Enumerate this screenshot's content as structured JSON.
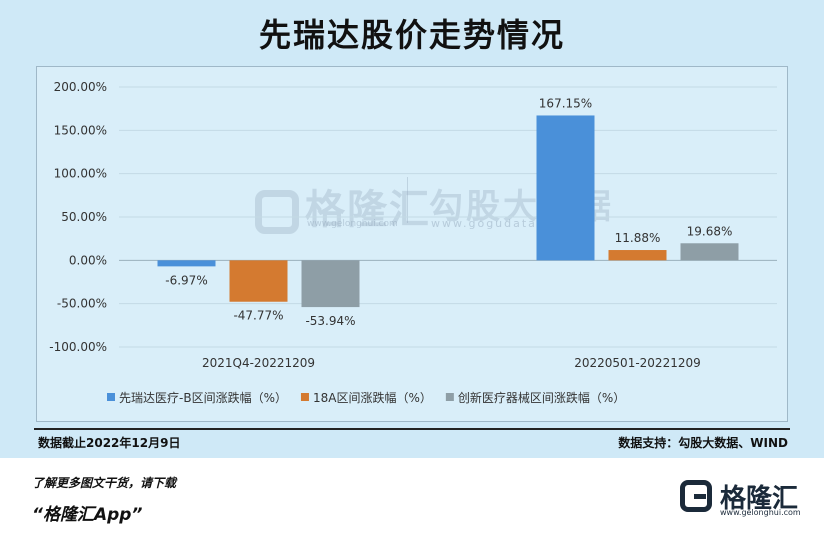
{
  "header": {
    "title": "先瑞达股价走势情况"
  },
  "watermark": {
    "left_brand": "格隆汇",
    "left_url": "www.gelonghui.com",
    "right_brand": "勾股大数据",
    "right_url": "www.gogudata.com"
  },
  "chart_data": {
    "type": "bar",
    "categories": [
      "2021Q4-20221209",
      "20220501-20221209"
    ],
    "series": [
      {
        "name": "先瑞达医疗-B区间涨跌幅（%）",
        "color": "#4a90d9",
        "values": [
          -6.97,
          167.15
        ],
        "labels": [
          "-6.97%",
          "167.15%"
        ]
      },
      {
        "name": "18A区间涨跌幅（%）",
        "color": "#d47a30",
        "values": [
          -47.77,
          11.88
        ],
        "labels": [
          "-47.77%",
          "11.88%"
        ]
      },
      {
        "name": "创新医疗器械区间涨跌幅（%）",
        "color": "#8e9ea6",
        "values": [
          -53.94,
          19.68
        ],
        "labels": [
          "-53.94%",
          "19.68%"
        ]
      }
    ],
    "ylim": [
      -100,
      200
    ],
    "yticks": [
      200,
      150,
      100,
      50,
      0,
      -50,
      -100
    ],
    "ytick_labels": [
      "200.00%",
      "150.00%",
      "100.00%",
      "50.00%",
      "0.00%",
      "-50.00%",
      "-100.00%"
    ],
    "grid": true,
    "legend_position": "bottom"
  },
  "notes": {
    "date": "数据截止2022年12月9日",
    "source": "数据支持：勾股大数据、WIND"
  },
  "footer": {
    "line1": "了解更多图文干货，请下载",
    "line2": "“格隆汇App”",
    "logo_text": "格隆汇",
    "logo_url": "www.gelonghui.com"
  }
}
